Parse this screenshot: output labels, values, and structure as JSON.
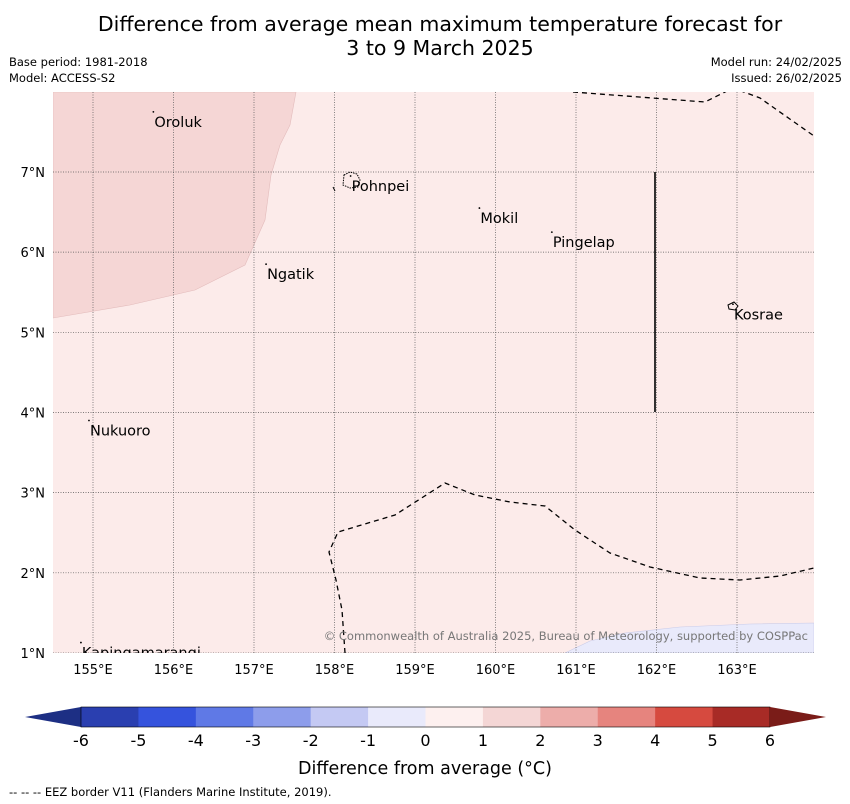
{
  "title_line1": "Difference from average mean maximum temperature forecast for",
  "title_line2": "3 to 9 March 2025",
  "base_period": "Base period: 1981-2018",
  "model": "Model: ACCESS-S2",
  "model_run": "Model run: 24/02/2025",
  "issued": "Issued: 26/02/2025",
  "copyright": "© Commonwealth of Australia 2025, Bureau of Meteorology, supported by COSPPac",
  "footer": "-- -- -- EEZ border V11 (Flanders Marine Institute, 2019).",
  "colorbar_label": "Difference from average (°C)",
  "map": {
    "lon_labels": [
      "155°E",
      "156°E",
      "157°E",
      "158°E",
      "159°E",
      "160°E",
      "161°E",
      "162°E",
      "163°E"
    ],
    "lat_labels": [
      "7°N",
      "6°N",
      "5°N",
      "4°N",
      "3°N",
      "2°N",
      "1°N"
    ],
    "places": [
      {
        "name": "Oroluk",
        "lon": 155.75,
        "lat": 7.7
      },
      {
        "name": "Pohnpei",
        "lon": 158.2,
        "lat": 6.9
      },
      {
        "name": "Mokil",
        "lon": 159.8,
        "lat": 6.5
      },
      {
        "name": "Pingelap",
        "lon": 160.7,
        "lat": 6.2
      },
      {
        "name": "Ngatik",
        "lon": 157.15,
        "lat": 5.8
      },
      {
        "name": "Kosrae",
        "lon": 162.95,
        "lat": 5.3
      },
      {
        "name": "Nukuoro",
        "lon": 154.95,
        "lat": 3.85
      },
      {
        "name": "Kapingamarangi",
        "lon": 154.85,
        "lat": 1.08
      }
    ]
  },
  "colorbar": {
    "ticks": [
      "-6",
      "-5",
      "-4",
      "-3",
      "-2",
      "-1",
      "0",
      "1",
      "2",
      "3",
      "4",
      "5",
      "6"
    ],
    "colors": [
      "#2a3fb0",
      "#3553dd",
      "#5f79e6",
      "#8d9deb",
      "#c4c9f3",
      "#e9eafb",
      "#fdf0ef",
      "#f4d6d5",
      "#edadaa",
      "#e6847e",
      "#d64a3f",
      "#a82b26"
    ],
    "under_color": "#1d2f84",
    "over_color": "#7a1c18"
  }
}
